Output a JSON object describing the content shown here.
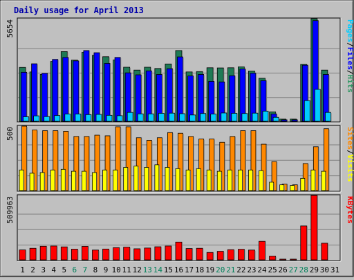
{
  "chart_data": {
    "type": "bar",
    "title": "Daily usage for April 2013",
    "x": [
      "1",
      "2",
      "3",
      "4",
      "5",
      "6",
      "7",
      "8",
      "9",
      "10",
      "11",
      "12",
      "13",
      "14",
      "15",
      "16",
      "17",
      "18",
      "19",
      "20",
      "21",
      "22",
      "23",
      "24",
      "25",
      "26",
      "27",
      "28",
      "29",
      "30",
      "31"
    ],
    "weekend_days": [
      "6",
      "7",
      "13",
      "14",
      "20",
      "21",
      "27",
      "28"
    ],
    "panels": [
      {
        "id": "top",
        "ymax_label": "5654",
        "ymax": 5654,
        "legend": [
          {
            "text": "Hits",
            "color": "#339966"
          },
          {
            "text": "/",
            "color": "#000000"
          },
          {
            "text": "Files",
            "color": "#0000ff"
          },
          {
            "text": "/",
            "color": "#000000"
          },
          {
            "text": "Pages",
            "color": "#00ccff"
          }
        ],
        "series": [
          {
            "name": "Hits",
            "color": "#1e7a55",
            "values": [
              2970,
              2720,
              2580,
              3300,
              3840,
              3370,
              3800,
              3640,
              3560,
              3380,
              2980,
              2820,
              2980,
              2910,
              3160,
              3900,
              2720,
              2740,
              2950,
              2940,
              2950,
              3000,
              2770,
              2370,
              520,
              120,
              120,
              3140,
              5654,
              2820,
              null
            ]
          },
          {
            "name": "Files",
            "color": "#0000ff",
            "values": [
              2700,
              3170,
              2640,
              3410,
              3520,
              3330,
              3900,
              3780,
              3190,
              3520,
              2670,
              2560,
              2780,
              2580,
              2900,
              3550,
              2500,
              2580,
              2200,
              2170,
              2510,
              2880,
              2650,
              2240,
              400,
              80,
              80,
              3090,
              5550,
              2580,
              null
            ]
          },
          {
            "name": "Pages",
            "color": "#00ccff",
            "values": [
              250,
              300,
              260,
              320,
              400,
              400,
              370,
              380,
              330,
              310,
              490,
              410,
              410,
              440,
              450,
              420,
              350,
              430,
              400,
              460,
              440,
              430,
              450,
              560,
              220,
              null,
              null,
              1140,
              1760,
              490,
              null
            ]
          }
        ]
      },
      {
        "id": "middle",
        "ymax_label": "500",
        "ymax": 500,
        "legend": [
          {
            "text": "Visits",
            "color": "#ffff00"
          },
          {
            "text": "/",
            "color": "#000000"
          },
          {
            "text": "Sites",
            "color": "#ff8800"
          }
        ],
        "series": [
          {
            "name": "Visits",
            "color": "#ffff00",
            "values": [
              160,
              135,
              140,
              160,
              165,
              150,
              150,
              140,
              160,
              160,
              180,
              190,
              180,
              200,
              180,
              170,
              160,
              170,
              160,
              150,
              160,
              160,
              160,
              155,
              65,
              45,
              40,
              95,
              160,
              150,
              null
            ]
          },
          {
            "name": "Sites",
            "color": "#ff8800",
            "values": [
              500,
              470,
              465,
              465,
              460,
              420,
              420,
              430,
              425,
              495,
              495,
              410,
              390,
              410,
              450,
              445,
              420,
              400,
              400,
              375,
              420,
              465,
              465,
              360,
              225,
              50,
              45,
              210,
              340,
              480,
              null
            ]
          }
        ]
      },
      {
        "id": "bottom",
        "ymax_label": "509963",
        "ymax": 509963,
        "legend": [
          {
            "text": "KBytes",
            "color": "#ff0000"
          }
        ],
        "series": [
          {
            "name": "KBytes",
            "color": "#ff0000",
            "values": [
              79000,
              92000,
              108000,
              110000,
              103000,
              85000,
              107000,
              78000,
              86000,
              97000,
              101000,
              88000,
              94000,
              104000,
              110000,
              141000,
              90000,
              92000,
              59000,
              68000,
              81000,
              84000,
              78000,
              147000,
              30000,
              6000,
              6000,
              269000,
              509963,
              132000,
              null
            ]
          }
        ]
      }
    ]
  }
}
